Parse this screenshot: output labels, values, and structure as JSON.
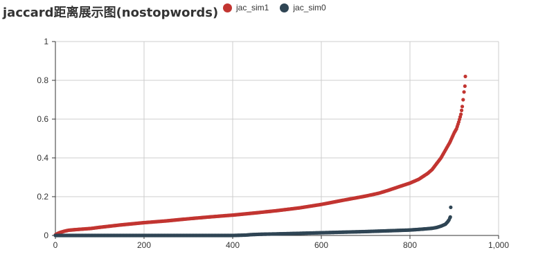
{
  "title": "jaccard距离展示图(nostopwords)",
  "chart_data": {
    "type": "scatter",
    "title": "jaccard距离展示图(nostopwords)",
    "xlabel": "",
    "ylabel": "",
    "xlim": [
      0,
      1000
    ],
    "ylim": [
      0,
      1
    ],
    "x_ticks": [
      "0",
      "200",
      "400",
      "600",
      "800",
      "1,000"
    ],
    "y_ticks": [
      "0",
      "0.2",
      "0.4",
      "0.6",
      "0.8",
      "1"
    ],
    "grid": true,
    "legend_position": "top",
    "series": [
      {
        "name": "jac_sim1",
        "color": "#c23531",
        "points": [
          [
            0,
            0.003
          ],
          [
            5,
            0.01
          ],
          [
            10,
            0.015
          ],
          [
            20,
            0.022
          ],
          [
            30,
            0.027
          ],
          [
            50,
            0.031
          ],
          [
            80,
            0.036
          ],
          [
            100,
            0.042
          ],
          [
            150,
            0.055
          ],
          [
            200,
            0.066
          ],
          [
            250,
            0.075
          ],
          [
            300,
            0.086
          ],
          [
            350,
            0.096
          ],
          [
            400,
            0.105
          ],
          [
            450,
            0.116
          ],
          [
            500,
            0.128
          ],
          [
            550,
            0.142
          ],
          [
            600,
            0.16
          ],
          [
            650,
            0.182
          ],
          [
            700,
            0.203
          ],
          [
            730,
            0.218
          ],
          [
            750,
            0.232
          ],
          [
            780,
            0.255
          ],
          [
            800,
            0.27
          ],
          [
            820,
            0.29
          ],
          [
            840,
            0.32
          ],
          [
            850,
            0.34
          ],
          [
            860,
            0.37
          ],
          [
            870,
            0.4
          ],
          [
            880,
            0.44
          ],
          [
            890,
            0.48
          ],
          [
            895,
            0.505
          ],
          [
            900,
            0.53
          ],
          [
            905,
            0.55
          ],
          [
            910,
            0.585
          ],
          [
            915,
            0.625
          ],
          [
            918,
            0.665
          ],
          [
            920,
            0.7
          ],
          [
            922,
            0.74
          ],
          [
            924,
            0.77
          ],
          [
            925,
            0.82
          ]
        ]
      },
      {
        "name": "jac_sim0",
        "color": "#2f4554",
        "points": [
          [
            0,
            0.0
          ],
          [
            100,
            0.0
          ],
          [
            200,
            0.0
          ],
          [
            300,
            0.0
          ],
          [
            400,
            0.0
          ],
          [
            430,
            0.002
          ],
          [
            440,
            0.004
          ],
          [
            460,
            0.006
          ],
          [
            500,
            0.008
          ],
          [
            550,
            0.011
          ],
          [
            600,
            0.014
          ],
          [
            650,
            0.017
          ],
          [
            700,
            0.02
          ],
          [
            750,
            0.024
          ],
          [
            800,
            0.028
          ],
          [
            830,
            0.033
          ],
          [
            850,
            0.037
          ],
          [
            860,
            0.041
          ],
          [
            870,
            0.048
          ],
          [
            880,
            0.058
          ],
          [
            885,
            0.07
          ],
          [
            888,
            0.08
          ],
          [
            890,
            0.09
          ],
          [
            891,
            0.095
          ],
          [
            892,
            0.145
          ]
        ]
      }
    ]
  }
}
